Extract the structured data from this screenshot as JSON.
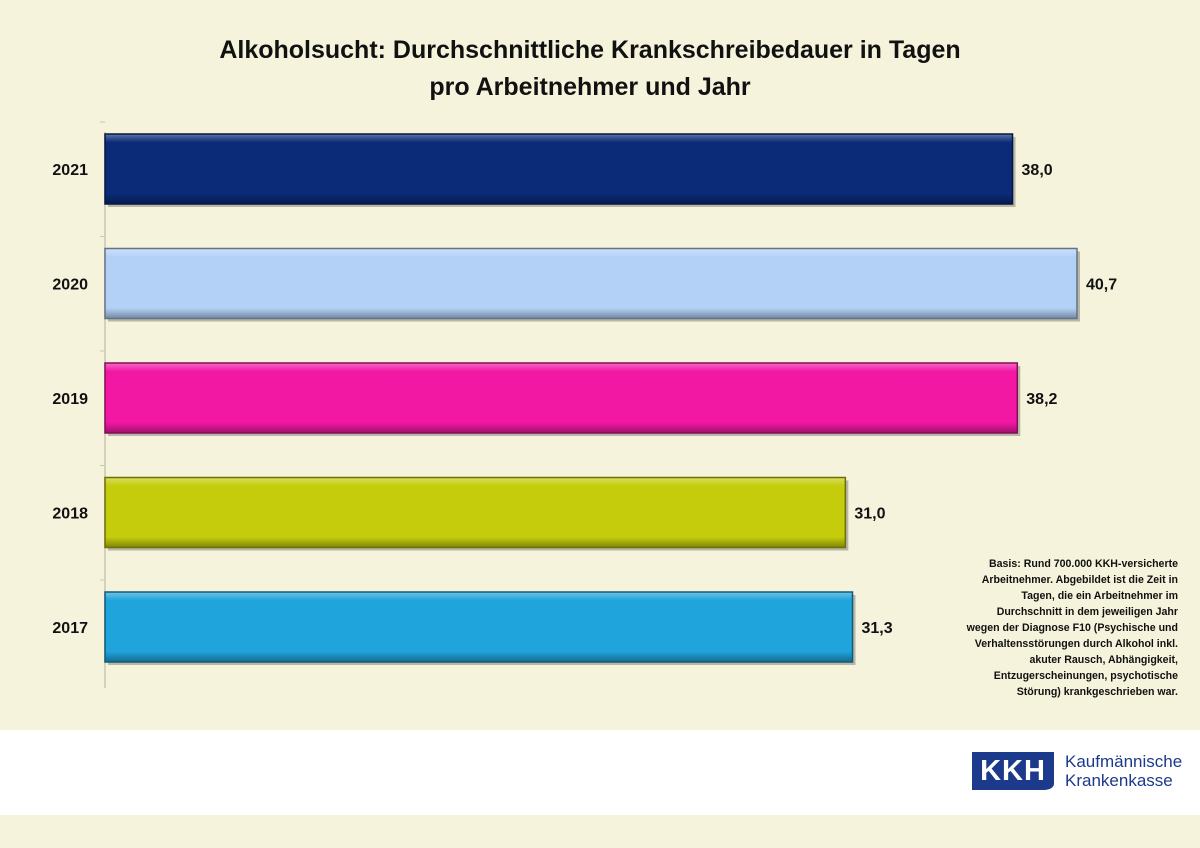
{
  "chart_data": {
    "type": "bar",
    "orientation": "horizontal",
    "title": "Alkoholsucht: Durchschnittliche Krankschreibedauer in Tagen",
    "subtitle": "pro Arbeitnehmer und Jahr",
    "categories": [
      "2021",
      "2020",
      "2019",
      "2018",
      "2017"
    ],
    "values": [
      38.0,
      40.7,
      38.2,
      31.0,
      31.3
    ],
    "data_labels": [
      "38,0",
      "40,7",
      "38,2",
      "31,0",
      "31,3"
    ],
    "colors": [
      "#0b2a78",
      "#b3d1f7",
      "#f218a4",
      "#c4cc0c",
      "#1fa4db"
    ],
    "xlim": [
      0,
      42
    ],
    "xlabel": "",
    "ylabel": "",
    "grid": false,
    "legend": "none"
  },
  "note": {
    "lines": [
      "Basis: Rund 700.000 KKH-versicherte",
      "Arbeitnehmer. Abgebildet ist die Zeit in",
      "Tagen, die ein Arbeitnehmer im",
      "Durchschnitt in dem jeweiligen Jahr",
      "wegen der Diagnose F10 (Psychische und",
      "Verhaltensstörungen durch Alkohol inkl.",
      "akuter Rausch, Abhängigkeit,",
      "Entzugerscheinungen, psychotische",
      "Störung) krankgeschrieben war."
    ]
  },
  "logo": {
    "mark": "KKH",
    "line1": "Kaufmännische",
    "line2": "Krankenkasse"
  }
}
